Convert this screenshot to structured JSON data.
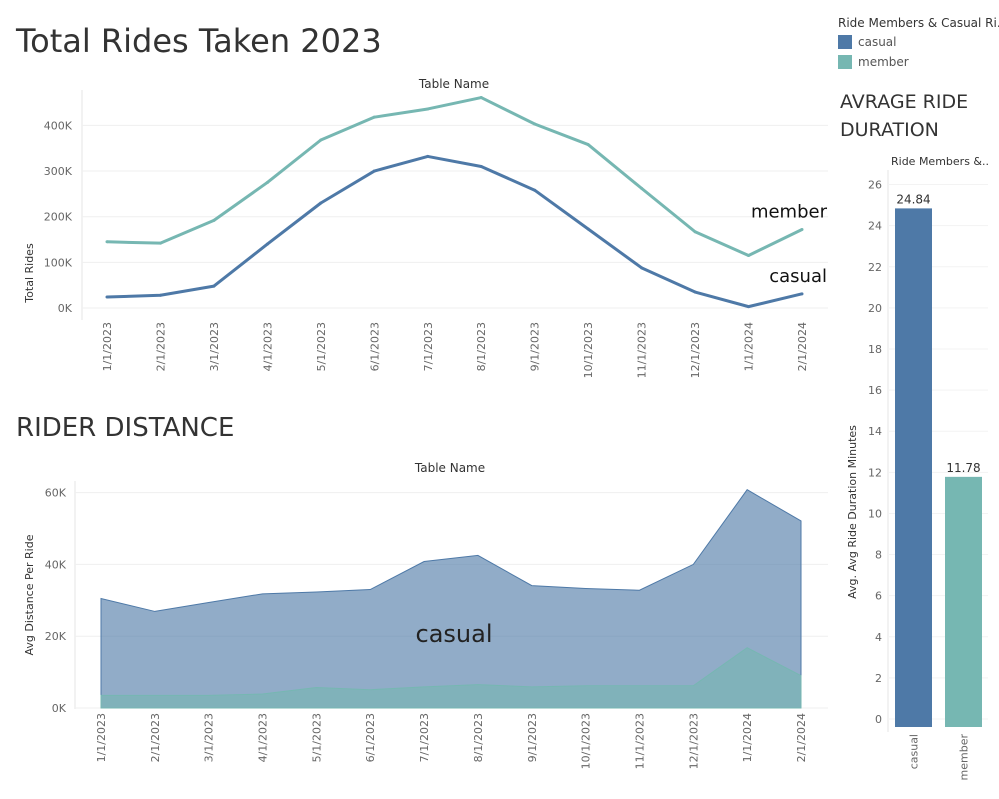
{
  "titles": {
    "total_rides": "Total Rides Taken 2023",
    "rider_distance": "RIDER DISTANCE",
    "avg_duration": "AVRAGE RIDE DURATION"
  },
  "legend": {
    "title": "Ride Members & Casual Ri..",
    "items": [
      {
        "label": "casual",
        "color": "#4e79a7"
      },
      {
        "label": "member",
        "color": "#76b7b2"
      }
    ]
  },
  "chart_data": [
    {
      "type": "line",
      "title": "Table Name",
      "ylabel": "Total Rides",
      "x": [
        "1/1/2023",
        "2/1/2023",
        "3/1/2023",
        "4/1/2023",
        "5/1/2023",
        "6/1/2023",
        "7/1/2023",
        "8/1/2023",
        "9/1/2023",
        "10/1/2023",
        "11/1/2023",
        "12/1/2023",
        "1/1/2024",
        "2/1/2024"
      ],
      "yticks": [
        0,
        100000,
        200000,
        300000,
        400000
      ],
      "ytick_labels": [
        "0K",
        "100K",
        "200K",
        "300K",
        "400K"
      ],
      "ylim": [
        0,
        460000
      ],
      "series": [
        {
          "name": "casual",
          "color": "#4e79a7",
          "values": [
            24000,
            28000,
            48000,
            140000,
            230000,
            300000,
            332000,
            310000,
            258000,
            173000,
            88000,
            35000,
            3000,
            31000
          ]
        },
        {
          "name": "member",
          "color": "#76b7b2",
          "values": [
            145000,
            142000,
            192000,
            275000,
            368000,
            418000,
            436000,
            461000,
            403000,
            358000,
            262000,
            167000,
            115000,
            172000
          ]
        }
      ],
      "grid": true
    },
    {
      "type": "area",
      "title": "Table Name",
      "ylabel": "Avg Distance Per Ride",
      "x": [
        "1/1/2023",
        "2/1/2023",
        "3/1/2023",
        "4/1/2023",
        "5/1/2023",
        "6/1/2023",
        "7/1/2023",
        "8/1/2023",
        "9/1/2023",
        "10/1/2023",
        "11/1/2023",
        "12/1/2023",
        "1/1/2024",
        "2/1/2024"
      ],
      "yticks": [
        0,
        20000,
        40000,
        60000
      ],
      "ytick_labels": [
        "0K",
        "20K",
        "40K",
        "60K"
      ],
      "ylim": [
        0,
        61000
      ],
      "annotation": "casual",
      "series": [
        {
          "name": "member",
          "color": "#76b7b2",
          "values": [
            3500,
            3500,
            3500,
            3900,
            5700,
            5100,
            5900,
            6500,
            5900,
            6200,
            6200,
            6200,
            16800,
            9000
          ]
        },
        {
          "name": "casual",
          "color": "#4e79a7",
          "values": [
            30500,
            26900,
            29400,
            31800,
            32300,
            33000,
            40800,
            42500,
            34100,
            33300,
            32800,
            40000,
            60800,
            52100
          ]
        }
      ],
      "stacked": false,
      "grid": true
    },
    {
      "type": "bar",
      "title": "Ride Members &..",
      "ylabel": "Avg. Avg Ride Duration Minutes",
      "categories": [
        "casual",
        "member"
      ],
      "values": [
        24.84,
        11.78
      ],
      "data_labels": [
        "24.84",
        "11.78"
      ],
      "colors": [
        "#4e79a7",
        "#76b7b2"
      ],
      "yticks": [
        0,
        2,
        4,
        6,
        8,
        10,
        12,
        14,
        16,
        18,
        20,
        22,
        24,
        26
      ],
      "ylim": [
        0,
        27
      ],
      "grid": true
    }
  ]
}
